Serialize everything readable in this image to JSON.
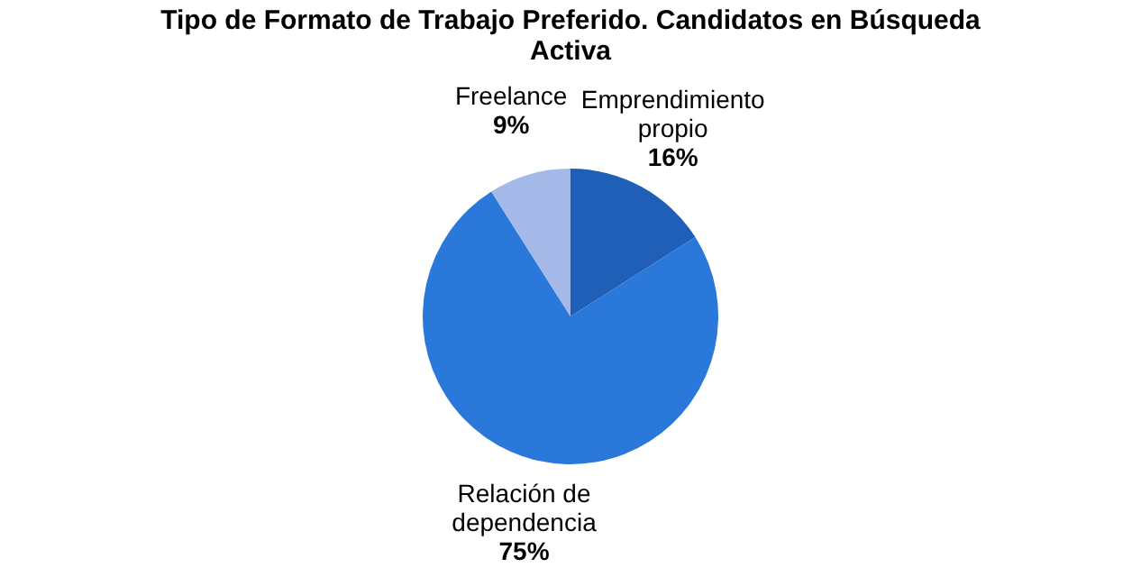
{
  "chart_data": {
    "type": "pie",
    "title": "Tipo de Formato de Trabajo Preferido. Candidatos en Búsqueda Activa",
    "categories": [
      "Emprendimiento propio",
      "Relación de dependencia",
      "Freelance"
    ],
    "values": [
      16,
      75,
      9
    ],
    "value_labels": [
      "16%",
      "75%",
      "9%"
    ],
    "colors": [
      "#1f5fb8",
      "#2a78d9",
      "#a4b9e8"
    ],
    "legend": false
  }
}
